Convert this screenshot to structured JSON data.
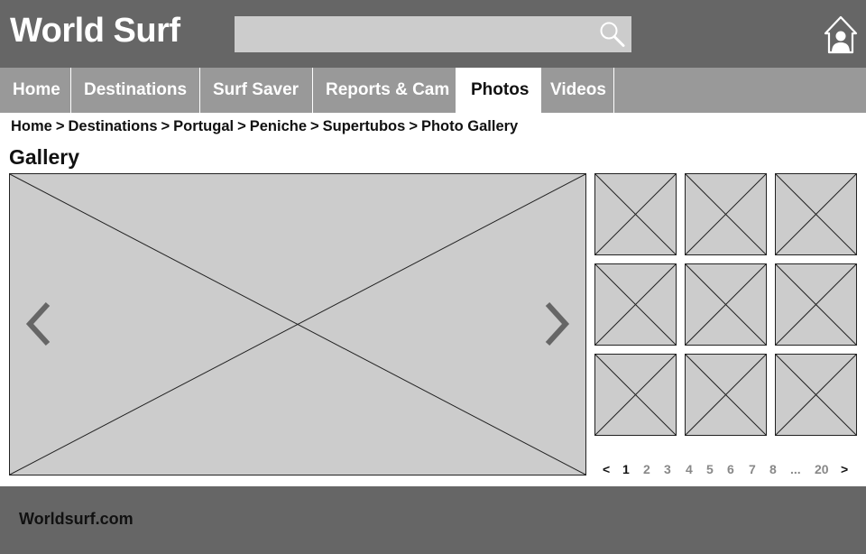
{
  "header": {
    "logo": "World Surf",
    "search": {
      "value": "",
      "placeholder": ""
    },
    "icons": {
      "search": "search-icon",
      "home_user": "home-user-icon"
    }
  },
  "nav": {
    "tabs": [
      {
        "label": "Home",
        "active": false
      },
      {
        "label": "Destinations",
        "active": false
      },
      {
        "label": "Surf Saver",
        "active": false
      },
      {
        "label": "Reports & Cam",
        "active": false
      },
      {
        "label": "Photos",
        "active": true
      },
      {
        "label": "Videos",
        "active": false
      }
    ]
  },
  "breadcrumb": {
    "items": [
      "Home",
      "Destinations",
      "Portugal",
      "Peniche",
      "Supertubos",
      "Photo Gallery"
    ],
    "separator": ">"
  },
  "gallery": {
    "title": "Gallery",
    "main_image_icons": {
      "prev": "chevron-left-icon",
      "next": "chevron-right-icon"
    },
    "thumbnail_count": 9
  },
  "pagination": {
    "prev": "<",
    "pages": [
      "1",
      "2",
      "3",
      "4",
      "5",
      "6",
      "7",
      "8",
      "...",
      "20"
    ],
    "next": ">",
    "current": "1"
  },
  "footer": {
    "text": "Worldsurf.com"
  },
  "colors": {
    "header_bg": "#666666",
    "nav_bg": "#999999",
    "placeholder_fill": "#cccccc",
    "active_tab_bg": "#ffffff"
  }
}
